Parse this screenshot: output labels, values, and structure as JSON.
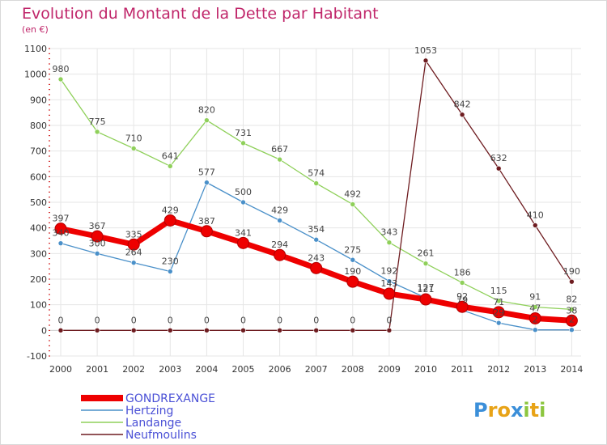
{
  "chart_data": {
    "type": "line",
    "title": "Evolution du Montant de la Dette par Habitant",
    "subtitle": "(en €)",
    "xlabel": "",
    "ylabel": "",
    "ylim": [
      -100,
      1100
    ],
    "yticks": [
      -100,
      0,
      100,
      200,
      300,
      400,
      500,
      600,
      700,
      800,
      900,
      1000,
      1100
    ],
    "categories": [
      "2000",
      "2001",
      "2002",
      "2003",
      "2004",
      "2005",
      "2006",
      "2007",
      "2008",
      "2009",
      "2010",
      "2011",
      "2012",
      "2013",
      "2014"
    ],
    "series": [
      {
        "name": "GONDREXANGE",
        "color": "#ee0000",
        "values": [
          397,
          367,
          335,
          429,
          387,
          341,
          294,
          243,
          190,
          143,
          121,
          92,
          71,
          47,
          38
        ],
        "labels": [
          "397",
          "367",
          "335",
          "429",
          "387",
          "341",
          "294",
          "243",
          "190",
          "143",
          "121",
          "92",
          "71",
          "47",
          "38"
        ]
      },
      {
        "name": "Hertzing",
        "color": "#4a90c9",
        "values": [
          340,
          300,
          264,
          230,
          577,
          500,
          429,
          354,
          275,
          192,
          127,
          79,
          29,
          2,
          2
        ],
        "labels": [
          "340",
          "300",
          "264",
          "230",
          "577",
          "500",
          "429",
          "354",
          "275",
          "192",
          "127",
          "79",
          "29",
          "2",
          "2"
        ]
      },
      {
        "name": "Landange",
        "color": "#8fd05a",
        "values": [
          980,
          775,
          710,
          641,
          820,
          731,
          667,
          574,
          492,
          343,
          261,
          186,
          115,
          91,
          82
        ],
        "labels": [
          "980",
          "775",
          "710",
          "641",
          "820",
          "731",
          "667",
          "574",
          "492",
          "343",
          "261",
          "186",
          "115",
          "91",
          "82"
        ]
      },
      {
        "name": "Neufmoulins",
        "color": "#6e1c20",
        "values": [
          0,
          0,
          0,
          0,
          0,
          0,
          0,
          0,
          0,
          0,
          1053,
          842,
          632,
          410,
          190
        ],
        "labels": [
          "0",
          "0",
          "0",
          "0",
          "0",
          "0",
          "0",
          "0",
          "0",
          "0",
          "1053",
          "842",
          "632",
          "410",
          "190"
        ]
      }
    ],
    "legend_position": "bottom-left"
  },
  "logo": {
    "letters": [
      "P",
      "r",
      "o",
      "x",
      "i",
      "t",
      "i"
    ],
    "colors": [
      "#3b8fd9",
      "#e8a317",
      "#e8a317",
      "#3b8fd9",
      "#8cc63f",
      "#e8a317",
      "#8cc63f"
    ]
  }
}
